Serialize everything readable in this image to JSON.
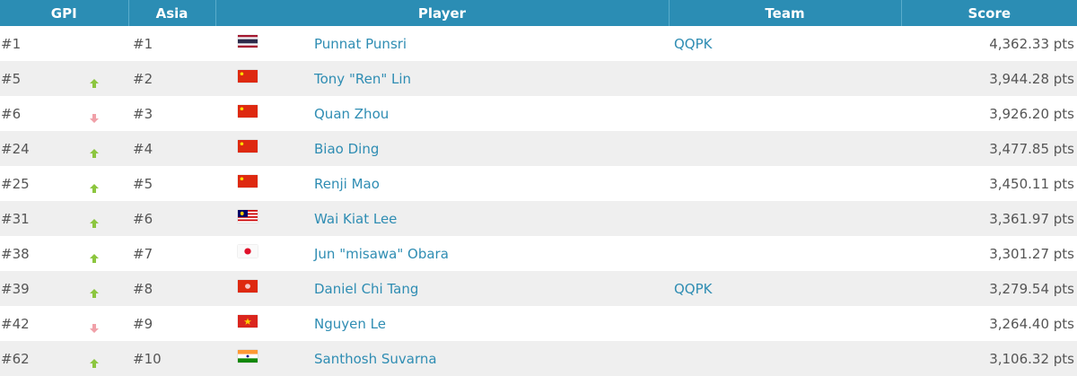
{
  "headers": {
    "gpi": "GPI",
    "asia": "Asia",
    "player": "Player",
    "team": "Team",
    "score": "Score"
  },
  "colors": {
    "header": "#2b8db4",
    "link": "#2f8db3",
    "up": "#8cc63f",
    "down": "#f0a0a8"
  },
  "rows": [
    {
      "gpi": "#1",
      "trend": "none",
      "asia": "#1",
      "flag": "thailand-flag",
      "player": "Punnat Punsri",
      "team": "QQPK",
      "score": "4,362.33 pts"
    },
    {
      "gpi": "#5",
      "trend": "up",
      "asia": "#2",
      "flag": "china-flag",
      "player": "Tony \"Ren\" Lin",
      "team": "",
      "score": "3,944.28 pts"
    },
    {
      "gpi": "#6",
      "trend": "down",
      "asia": "#3",
      "flag": "china-flag",
      "player": "Quan Zhou",
      "team": "",
      "score": "3,926.20 pts"
    },
    {
      "gpi": "#24",
      "trend": "up",
      "asia": "#4",
      "flag": "china-flag",
      "player": "Biao Ding",
      "team": "",
      "score": "3,477.85 pts"
    },
    {
      "gpi": "#25",
      "trend": "up",
      "asia": "#5",
      "flag": "china-flag",
      "player": "Renji Mao",
      "team": "",
      "score": "3,450.11 pts"
    },
    {
      "gpi": "#31",
      "trend": "up",
      "asia": "#6",
      "flag": "malaysia-flag",
      "player": "Wai Kiat Lee",
      "team": "",
      "score": "3,361.97 pts"
    },
    {
      "gpi": "#38",
      "trend": "up",
      "asia": "#7",
      "flag": "japan-flag",
      "player": "Jun \"misawa\" Obara",
      "team": "",
      "score": "3,301.27 pts"
    },
    {
      "gpi": "#39",
      "trend": "up",
      "asia": "#8",
      "flag": "hong-kong-flag",
      "player": "Daniel Chi Tang",
      "team": "QQPK",
      "score": "3,279.54 pts"
    },
    {
      "gpi": "#42",
      "trend": "down",
      "asia": "#9",
      "flag": "vietnam-flag",
      "player": "Nguyen Le",
      "team": "",
      "score": "3,264.40 pts"
    },
    {
      "gpi": "#62",
      "trend": "up",
      "asia": "#10",
      "flag": "india-flag",
      "player": "Santhosh Suvarna",
      "team": "",
      "score": "3,106.32 pts"
    }
  ]
}
